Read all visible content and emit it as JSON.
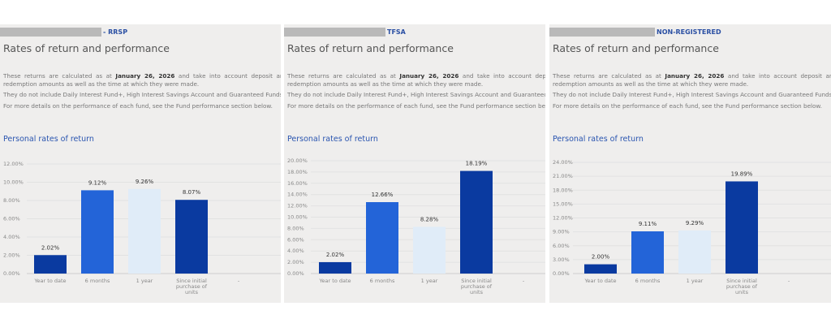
{
  "common": {
    "title": "Rates of return and performance",
    "text_prefix": "These returns are calculated as at ",
    "date": "January 26, 2026",
    "text_suffix": " and take into account deposit and redemption amounts as well as the time at which they were made.",
    "text2": "They do not include Daily Interest Fund+, High Interest Savings Account and Guaranteed Funds.",
    "text3": "For more details on the performance of each fund, see the Fund performance section below.",
    "subtitle": "Personal rates of return"
  },
  "colors": {
    "dark_blue": "#0a3aa0",
    "mid_blue": "#2364d8",
    "pale_blue": "#e0ecf8"
  },
  "chart_data": [
    {
      "type": "bar",
      "account": "- RRSP",
      "categories": [
        "Year to date",
        "6 months",
        "1 year",
        "Since initial purchase of units",
        "-"
      ],
      "values": [
        2.02,
        9.12,
        9.26,
        8.07,
        null
      ],
      "labels": [
        "2.02%",
        "9.12%",
        "9.26%",
        "8.07%",
        ""
      ],
      "ylim": [
        0,
        12
      ],
      "yticks": [
        "0.00%",
        "2.00%",
        "4.00%",
        "6.00%",
        "8.00%",
        "10.00%",
        "12.00%"
      ],
      "ystep": 2
    },
    {
      "type": "bar",
      "account": "TFSA",
      "categories": [
        "Year to date",
        "6 months",
        "1 year",
        "Since initial purchase of units",
        "-"
      ],
      "values": [
        2.02,
        12.66,
        8.28,
        18.19,
        null
      ],
      "labels": [
        "2.02%",
        "12.66%",
        "8.28%",
        "18.19%",
        ""
      ],
      "ylim": [
        0,
        20
      ],
      "yticks": [
        "0.00%",
        "2.00%",
        "4.00%",
        "6.00%",
        "8.00%",
        "10.00%",
        "12.00%",
        "14.00%",
        "16.00%",
        "18.00%",
        "20.00%"
      ],
      "ystep": 2
    },
    {
      "type": "bar",
      "account": "NON-REGISTERED",
      "categories": [
        "Year to date",
        "6 months",
        "1 year",
        "Since initial purchase of units",
        "-"
      ],
      "values": [
        2.0,
        9.11,
        9.29,
        19.89,
        null
      ],
      "labels": [
        "2.00%",
        "9.11%",
        "9.29%",
        "19.89%",
        ""
      ],
      "ylim": [
        0,
        24
      ],
      "yticks": [
        "0.00%",
        "3.00%",
        "6.00%",
        "9.00%",
        "12.00%",
        "15.00%",
        "18.00%",
        "21.00%",
        "24.00%"
      ],
      "ystep": 3
    }
  ]
}
